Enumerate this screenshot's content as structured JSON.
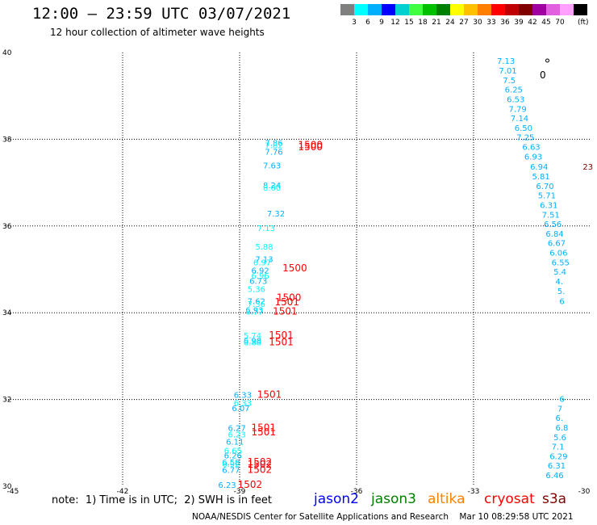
{
  "header": {
    "title": "12:00 — 23:59 UTC 03/07/2021",
    "subtitle": "12 hour collection of altimeter wave heights"
  },
  "colorbar": {
    "colors": [
      "#808080",
      "#00ffff",
      "#00b0ff",
      "#0000ff",
      "#00d0d0",
      "#40ff40",
      "#00c000",
      "#008000",
      "#ffff00",
      "#ffc000",
      "#ff8000",
      "#ff0000",
      "#c00000",
      "#800000",
      "#a000a0",
      "#e060e0",
      "#ffa0ff",
      "#000000"
    ],
    "labels": [
      "3",
      "6",
      "9",
      "12",
      "15",
      "18",
      "21",
      "24",
      "27",
      "30",
      "33",
      "36",
      "39",
      "42",
      "45",
      "70"
    ],
    "unit": "(ft)"
  },
  "map": {
    "lon_ticks": [
      "-45",
      "-42",
      "-39",
      "-36",
      "-33",
      "-30"
    ],
    "lat_ticks": [
      "40",
      "38",
      "36",
      "34",
      "32",
      "30"
    ]
  },
  "observations": [
    {
      "text": "7.13",
      "lon": -32.4,
      "lat": 39.81,
      "color": "#00b0ff"
    },
    {
      "text": "7.01",
      "lon": -32.35,
      "lat": 39.59,
      "color": "#00b0ff"
    },
    {
      "text": "7.5",
      "lon": -32.25,
      "lat": 39.37,
      "color": "#00b0ff"
    },
    {
      "text": "6.25",
      "lon": -32.2,
      "lat": 39.15,
      "color": "#00b0ff"
    },
    {
      "text": "6.53",
      "lon": -32.15,
      "lat": 38.93,
      "color": "#00b0ff"
    },
    {
      "text": "7.79",
      "lon": -32.1,
      "lat": 38.71,
      "color": "#00b0ff"
    },
    {
      "text": "7.14",
      "lon": -32.05,
      "lat": 38.49,
      "color": "#00b0ff"
    },
    {
      "text": "6.50",
      "lon": -31.95,
      "lat": 38.27,
      "color": "#00b0ff"
    },
    {
      "text": "7.25",
      "lon": -31.9,
      "lat": 38.05,
      "color": "#00b0ff"
    },
    {
      "text": "6.63",
      "lon": -31.75,
      "lat": 37.83,
      "color": "#00b0ff"
    },
    {
      "text": "6.93",
      "lon": -31.7,
      "lat": 37.61,
      "color": "#00b0ff"
    },
    {
      "text": "6.94",
      "lon": -31.55,
      "lat": 37.37,
      "color": "#00b0ff"
    },
    {
      "text": "5.81",
      "lon": -31.5,
      "lat": 37.15,
      "color": "#00b0ff"
    },
    {
      "text": "6.70",
      "lon": -31.4,
      "lat": 36.93,
      "color": "#00b0ff"
    },
    {
      "text": "5.71",
      "lon": -31.35,
      "lat": 36.71,
      "color": "#00b0ff"
    },
    {
      "text": "6.31",
      "lon": -31.3,
      "lat": 36.49,
      "color": "#00b0ff"
    },
    {
      "text": "7.51",
      "lon": -31.25,
      "lat": 36.27,
      "color": "#00b0ff"
    },
    {
      "text": "6.56",
      "lon": -31.2,
      "lat": 36.05,
      "color": "#00b0ff"
    },
    {
      "text": "6.84",
      "lon": -31.15,
      "lat": 35.83,
      "color": "#00b0ff"
    },
    {
      "text": "6.67",
      "lon": -31.1,
      "lat": 35.61,
      "color": "#00b0ff"
    },
    {
      "text": "6.06",
      "lon": -31.05,
      "lat": 35.39,
      "color": "#00b0ff"
    },
    {
      "text": "6.55",
      "lon": -31.0,
      "lat": 35.17,
      "color": "#00b0ff"
    },
    {
      "text": "5.4",
      "lon": -30.95,
      "lat": 34.95,
      "color": "#00b0ff"
    },
    {
      "text": "4.",
      "lon": -30.9,
      "lat": 34.73,
      "color": "#00b0ff"
    },
    {
      "text": "5.",
      "lon": -30.85,
      "lat": 34.51,
      "color": "#00b0ff"
    },
    {
      "text": "6",
      "lon": -30.8,
      "lat": 34.27,
      "color": "#00b0ff"
    },
    {
      "text": "6",
      "lon": -30.8,
      "lat": 32.02,
      "color": "#00b0ff"
    },
    {
      "text": "7",
      "lon": -30.85,
      "lat": 31.8,
      "color": "#00b0ff"
    },
    {
      "text": "6.",
      "lon": -30.9,
      "lat": 31.58,
      "color": "#00b0ff"
    },
    {
      "text": "6.8",
      "lon": -30.9,
      "lat": 31.36,
      "color": "#00b0ff"
    },
    {
      "text": "5.6",
      "lon": -30.95,
      "lat": 31.14,
      "color": "#00b0ff"
    },
    {
      "text": "7.1",
      "lon": -31.0,
      "lat": 30.92,
      "color": "#00b0ff"
    },
    {
      "text": "6.29",
      "lon": -31.05,
      "lat": 30.7,
      "color": "#00b0ff"
    },
    {
      "text": "6.31",
      "lon": -31.1,
      "lat": 30.48,
      "color": "#00b0ff"
    },
    {
      "text": "6.46",
      "lon": -31.15,
      "lat": 30.26,
      "color": "#00b0ff"
    },
    {
      "text": "7.86",
      "lon": -38.35,
      "lat": 37.92,
      "color": "#00b0ff"
    },
    {
      "text": "7.82",
      "lon": -38.35,
      "lat": 37.87,
      "color": "#00ffff"
    },
    {
      "text": "7.76",
      "lon": -38.35,
      "lat": 37.72,
      "color": "#00b0ff"
    },
    {
      "text": "7.63",
      "lon": -38.4,
      "lat": 37.4,
      "color": "#00b0ff"
    },
    {
      "text": "8.24",
      "lon": -38.4,
      "lat": 36.95,
      "color": "#00b0ff"
    },
    {
      "text": "8.00",
      "lon": -38.4,
      "lat": 36.89,
      "color": "#00ffff"
    },
    {
      "text": "7.32",
      "lon": -38.3,
      "lat": 36.29,
      "color": "#00b0ff"
    },
    {
      "text": "7.13",
      "lon": -38.55,
      "lat": 35.96,
      "color": "#00ffff"
    },
    {
      "text": "5.88",
      "lon": -38.6,
      "lat": 35.53,
      "color": "#00ffff"
    },
    {
      "text": "7.13",
      "lon": -38.6,
      "lat": 35.24,
      "color": "#00b0ff"
    },
    {
      "text": "6.97",
      "lon": -38.65,
      "lat": 35.17,
      "color": "#00ffff"
    },
    {
      "text": "6.92",
      "lon": -38.7,
      "lat": 34.98,
      "color": "#00b0ff"
    },
    {
      "text": "6.96",
      "lon": -38.7,
      "lat": 34.86,
      "color": "#00ffff"
    },
    {
      "text": "6.73",
      "lon": -38.75,
      "lat": 34.74,
      "color": "#00b0ff"
    },
    {
      "text": "5.36",
      "lon": -38.8,
      "lat": 34.55,
      "color": "#00ffff"
    },
    {
      "text": "7.62",
      "lon": -38.8,
      "lat": 34.27,
      "color": "#00b0ff"
    },
    {
      "text": "7.36",
      "lon": -38.8,
      "lat": 34.21,
      "color": "#00ffff"
    },
    {
      "text": "6.93",
      "lon": -38.85,
      "lat": 34.07,
      "color": "#00b0ff"
    },
    {
      "text": "6.77",
      "lon": -38.85,
      "lat": 34.03,
      "color": "#00ffff"
    },
    {
      "text": "5.74",
      "lon": -38.9,
      "lat": 33.48,
      "color": "#00ffff"
    },
    {
      "text": "6.98",
      "lon": -38.9,
      "lat": 33.36,
      "color": "#00b0ff"
    },
    {
      "text": "6.88",
      "lon": -38.9,
      "lat": 33.32,
      "color": "#00ffff"
    },
    {
      "text": "6.33",
      "lon": -39.15,
      "lat": 32.11,
      "color": "#00b0ff"
    },
    {
      "text": "6.33",
      "lon": -39.15,
      "lat": 31.93,
      "color": "#00ffff"
    },
    {
      "text": "6.07",
      "lon": -39.2,
      "lat": 31.81,
      "color": "#00b0ff"
    },
    {
      "text": "6.27",
      "lon": -39.3,
      "lat": 31.35,
      "color": "#00b0ff"
    },
    {
      "text": "6.23",
      "lon": -39.3,
      "lat": 31.2,
      "color": "#00ffff"
    },
    {
      "text": "6.11",
      "lon": -39.35,
      "lat": 31.03,
      "color": "#00b0ff"
    },
    {
      "text": "6.65",
      "lon": -39.4,
      "lat": 30.83,
      "color": "#00ffff"
    },
    {
      "text": "6.26",
      "lon": -39.4,
      "lat": 30.72,
      "color": "#00b0ff"
    },
    {
      "text": "6.58",
      "lon": -39.45,
      "lat": 30.56,
      "color": "#00b0ff"
    },
    {
      "text": "6.92",
      "lon": -39.45,
      "lat": 30.52,
      "color": "#00ffff"
    },
    {
      "text": "6.77",
      "lon": -39.45,
      "lat": 30.38,
      "color": "#00b0ff"
    },
    {
      "text": "6.23",
      "lon": -39.55,
      "lat": 30.04,
      "color": "#00b0ff"
    },
    {
      "text": "1500",
      "lon": -37.5,
      "lat": 37.87,
      "color": "#ff0000"
    },
    {
      "text": "1500",
      "lon": -37.5,
      "lat": 37.82,
      "color": "#ff0000"
    },
    {
      "text": "1500",
      "lon": -37.9,
      "lat": 35.03,
      "color": "#ff0000"
    },
    {
      "text": "1500",
      "lon": -38.05,
      "lat": 34.35,
      "color": "#ff0000"
    },
    {
      "text": "1501",
      "lon": -38.1,
      "lat": 34.25,
      "color": "#ff0000"
    },
    {
      "text": "1501",
      "lon": -38.15,
      "lat": 34.03,
      "color": "#ff0000"
    },
    {
      "text": "1501",
      "lon": -38.25,
      "lat": 33.48,
      "color": "#ff0000"
    },
    {
      "text": "1501",
      "lon": -38.25,
      "lat": 33.32,
      "color": "#ff0000"
    },
    {
      "text": "1501",
      "lon": -38.55,
      "lat": 32.11,
      "color": "#ff0000"
    },
    {
      "text": "1501",
      "lon": -38.7,
      "lat": 31.35,
      "color": "#ff0000"
    },
    {
      "text": "1501",
      "lon": -38.7,
      "lat": 31.25,
      "color": "#ff0000"
    },
    {
      "text": "1502",
      "lon": -38.8,
      "lat": 30.56,
      "color": "#ff0000"
    },
    {
      "text": "1502",
      "lon": -38.8,
      "lat": 30.5,
      "color": "#ff0000"
    },
    {
      "text": "1502",
      "lon": -38.8,
      "lat": 30.38,
      "color": "#ff0000"
    },
    {
      "text": "1502",
      "lon": -39.05,
      "lat": 30.04,
      "color": "#ff0000"
    },
    {
      "text": "23",
      "lon": -30.2,
      "lat": 37.37,
      "color": "#800000"
    }
  ],
  "footer": {
    "note": "note:  1) Time is in UTC;  2) SWH is in feet",
    "legend": [
      {
        "label": "jason2",
        "color": "#0000ff"
      },
      {
        "label": "jason3",
        "color": "#008000"
      },
      {
        "label": "altika",
        "color": "#ff8000"
      },
      {
        "label": "cryosat",
        "color": "#ff0000"
      },
      {
        "label": "s3a",
        "color": "#800000"
      }
    ],
    "credit": "NOAA/NESDIS Center for Satellite Applications and Research    Mar 10 08:29:58 UTC 2021"
  }
}
